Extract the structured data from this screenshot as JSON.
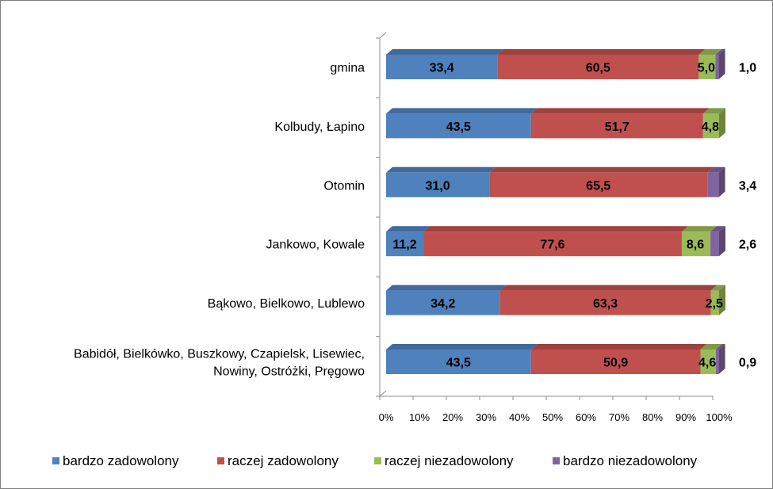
{
  "chart_data": {
    "type": "bar",
    "orientation": "horizontal",
    "stacked": true,
    "percent_stacked": true,
    "three_d": true,
    "categories": [
      "gmina",
      "Kolbudy, Łapino",
      "Otomin",
      "Jankowo, Kowale",
      "Bąkowo, Bielkowo, Lublewo",
      "Babidół, Bielkówko, Buszkowy, Czapielsk, Lisewiec, Nowiny, Ostróżki, Pręgowo"
    ],
    "category_lines": [
      [
        "gmina"
      ],
      [
        "Kolbudy, Łapino"
      ],
      [
        "Otomin"
      ],
      [
        "Jankowo, Kowale"
      ],
      [
        "Bąkowo, Bielkowo, Lublewo"
      ],
      [
        "Babidół, Bielkówko, Buszkowy, Czapielsk, Lisewiec,",
        "Nowiny, Ostróżki, Pręgowo"
      ]
    ],
    "series": [
      {
        "name": "bardzo zadowolony",
        "color": "#4f81bd",
        "values": [
          33.4,
          43.5,
          31.0,
          11.2,
          34.2,
          43.5
        ]
      },
      {
        "name": "raczej zadowolony",
        "color": "#c0504d",
        "values": [
          60.5,
          51.7,
          65.5,
          77.6,
          63.3,
          50.9
        ]
      },
      {
        "name": "raczej niezadowolony",
        "color": "#9bbb59",
        "values": [
          5.0,
          4.8,
          0.0,
          8.6,
          2.5,
          4.6
        ]
      },
      {
        "name": "bardzo niezadowolony",
        "color": "#8064a2",
        "values": [
          1.0,
          0.0,
          3.4,
          2.6,
          0.0,
          0.9
        ]
      }
    ],
    "data_labels": [
      [
        "33,4",
        "60,5",
        "5,0",
        "1,0"
      ],
      [
        "43,5",
        "51,7",
        "4,8",
        ""
      ],
      [
        "31,0",
        "65,5",
        "",
        "3,4"
      ],
      [
        "11,2",
        "77,6",
        "8,6",
        "2,6"
      ],
      [
        "34,2",
        "63,3",
        "2,5",
        ""
      ],
      [
        "43,5",
        "50,9",
        "4,6",
        "0,9"
      ]
    ],
    "x_ticks": [
      "0%",
      "10%",
      "20%",
      "30%",
      "40%",
      "50%",
      "60%",
      "70%",
      "80%",
      "90%",
      "100%"
    ],
    "xlim": [
      0,
      100
    ],
    "grid": false,
    "legend_position": "bottom"
  }
}
